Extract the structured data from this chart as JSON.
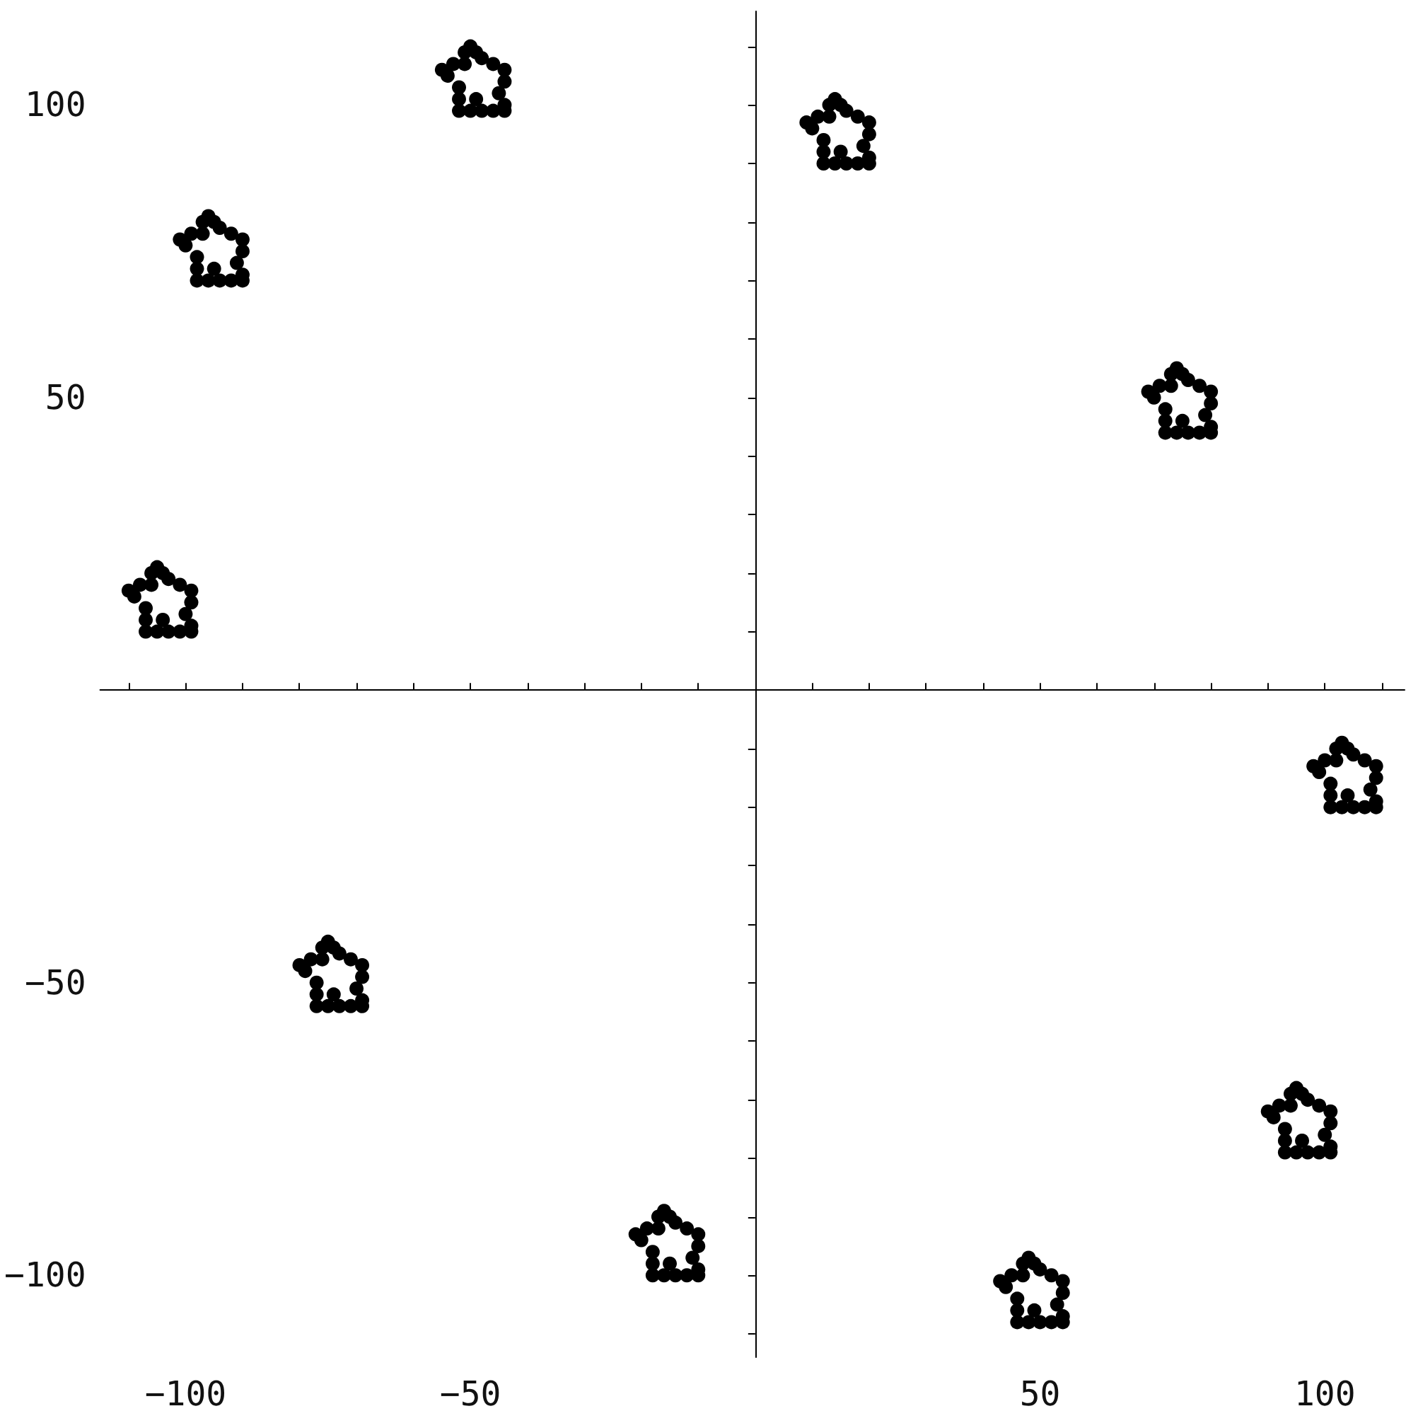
{
  "chart_data": {
    "type": "scatter",
    "marker": "circle",
    "color": "#000000",
    "grid": false,
    "xlim": [
      -115,
      114
    ],
    "ylim": [
      -114,
      116
    ],
    "xticks": [
      {
        "value": -110,
        "label": null
      },
      {
        "value": -100,
        "label": "−100"
      },
      {
        "value": -90,
        "label": null
      },
      {
        "value": -80,
        "label": null
      },
      {
        "value": -70,
        "label": null
      },
      {
        "value": -60,
        "label": null
      },
      {
        "value": -50,
        "label": "−50"
      },
      {
        "value": -40,
        "label": null
      },
      {
        "value": -30,
        "label": null
      },
      {
        "value": -20,
        "label": null
      },
      {
        "value": -10,
        "label": null
      },
      {
        "value": 10,
        "label": null
      },
      {
        "value": 20,
        "label": null
      },
      {
        "value": 30,
        "label": null
      },
      {
        "value": 40,
        "label": null
      },
      50,
      {
        "value": 60,
        "label": null
      },
      {
        "value": 70,
        "label": null
      },
      {
        "value": 80,
        "label": null
      },
      {
        "value": 90,
        "label": null
      },
      100,
      {
        "value": 110,
        "label": null
      }
    ],
    "yticks": [
      {
        "value": -110,
        "label": null
      },
      {
        "value": -100,
        "label": "−100"
      },
      {
        "value": -90,
        "label": null
      },
      {
        "value": -80,
        "label": null
      },
      {
        "value": -70,
        "label": null
      },
      {
        "value": -60,
        "label": null
      },
      {
        "value": -50,
        "label": "−50"
      },
      {
        "value": -40,
        "label": null
      },
      {
        "value": -30,
        "label": null
      },
      {
        "value": -20,
        "label": null
      },
      {
        "value": -10,
        "label": null
      },
      {
        "value": 10,
        "label": null
      },
      {
        "value": 20,
        "label": null
      },
      {
        "value": 30,
        "label": null
      },
      {
        "value": 40,
        "label": null
      },
      50,
      {
        "value": 60,
        "label": null
      },
      {
        "value": 70,
        "label": null
      },
      {
        "value": 80,
        "label": null
      },
      {
        "value": 90,
        "label": null
      },
      100,
      {
        "value": 110,
        "label": null
      }
    ],
    "x": [
      14,
      15,
      16,
      18,
      20,
      20,
      19,
      20,
      20,
      18,
      16,
      15,
      14,
      12,
      12,
      12,
      10,
      9,
      11,
      13,
      13,
      -50,
      -49,
      -48,
      -46,
      -44,
      -44,
      -45,
      -44,
      -44,
      -46,
      -48,
      -49,
      -50,
      -52,
      -52,
      -52,
      -54,
      -55,
      -53,
      -51,
      -51,
      -96,
      -95,
      -94,
      -92,
      -90,
      -90,
      -91,
      -90,
      -90,
      -92,
      -94,
      -95,
      -96,
      -98,
      -98,
      -98,
      -100,
      -101,
      -99,
      -97,
      -97,
      -105,
      -104,
      -103,
      -101,
      -99,
      -99,
      -100,
      -99,
      -99,
      -101,
      -103,
      -104,
      -105,
      -107,
      -107,
      -107,
      -109,
      -110,
      -108,
      -106,
      -106,
      74,
      75,
      76,
      78,
      80,
      80,
      79,
      80,
      80,
      78,
      76,
      75,
      74,
      72,
      72,
      72,
      70,
      69,
      71,
      73,
      73,
      103,
      104,
      105,
      107,
      109,
      109,
      108,
      109,
      109,
      107,
      105,
      104,
      103,
      101,
      101,
      101,
      99,
      98,
      100,
      102,
      102,
      -75,
      -74,
      -73,
      -71,
      -69,
      -69,
      -70,
      -69,
      -69,
      -71,
      -73,
      -74,
      -75,
      -77,
      -77,
      -77,
      -79,
      -80,
      -78,
      -76,
      -76,
      95,
      96,
      97,
      99,
      101,
      101,
      100,
      101,
      101,
      99,
      97,
      96,
      95,
      93,
      93,
      93,
      91,
      90,
      92,
      94,
      94,
      -16,
      -15,
      -14,
      -12,
      -10,
      -10,
      -11,
      -10,
      -10,
      -12,
      -14,
      -15,
      -16,
      -18,
      -18,
      -18,
      -20,
      -21,
      -19,
      -17,
      -17,
      48,
      49,
      50,
      52,
      54,
      54,
      53,
      54,
      54,
      52,
      50,
      49,
      48,
      46,
      46,
      46,
      44,
      43,
      45,
      47,
      47
    ],
    "values": [
      101,
      100,
      99,
      98,
      97,
      95,
      93,
      91,
      90,
      90,
      90,
      92,
      90,
      90,
      92,
      94,
      96,
      97,
      98,
      98,
      100,
      110,
      109,
      108,
      107,
      106,
      104,
      102,
      100,
      99,
      99,
      99,
      101,
      99,
      99,
      101,
      103,
      105,
      106,
      107,
      107,
      109,
      81,
      80,
      79,
      78,
      77,
      75,
      73,
      71,
      70,
      70,
      70,
      72,
      70,
      70,
      72,
      74,
      76,
      77,
      78,
      78,
      80,
      21,
      20,
      19,
      18,
      17,
      15,
      13,
      11,
      10,
      10,
      10,
      12,
      10,
      10,
      12,
      14,
      16,
      17,
      18,
      18,
      20,
      55,
      54,
      53,
      52,
      51,
      49,
      47,
      45,
      44,
      44,
      44,
      46,
      44,
      44,
      46,
      48,
      50,
      51,
      52,
      52,
      54,
      -9,
      -10,
      -11,
      -12,
      -13,
      -15,
      -17,
      -19,
      -20,
      -20,
      -20,
      -18,
      -20,
      -20,
      -18,
      -16,
      -14,
      -13,
      -12,
      -12,
      -10,
      -43,
      -44,
      -45,
      -46,
      -47,
      -49,
      -51,
      -53,
      -54,
      -54,
      -54,
      -52,
      -54,
      -54,
      -52,
      -50,
      -48,
      -47,
      -46,
      -46,
      -44,
      -68,
      -69,
      -70,
      -71,
      -72,
      -74,
      -76,
      -78,
      -79,
      -79,
      -79,
      -77,
      -79,
      -79,
      -77,
      -75,
      -73,
      -72,
      -71,
      -71,
      -69,
      -89,
      -90,
      -91,
      -92,
      -93,
      -95,
      -97,
      -99,
      -100,
      -100,
      -100,
      -98,
      -100,
      -100,
      -98,
      -96,
      -94,
      -93,
      -92,
      -92,
      -90,
      -97,
      -98,
      -99,
      -100,
      -101,
      -103,
      -105,
      -107,
      -108,
      -108,
      -108,
      -106,
      -108,
      -108,
      -106,
      -104,
      -102,
      -101,
      -100,
      -100,
      -98
    ]
  }
}
